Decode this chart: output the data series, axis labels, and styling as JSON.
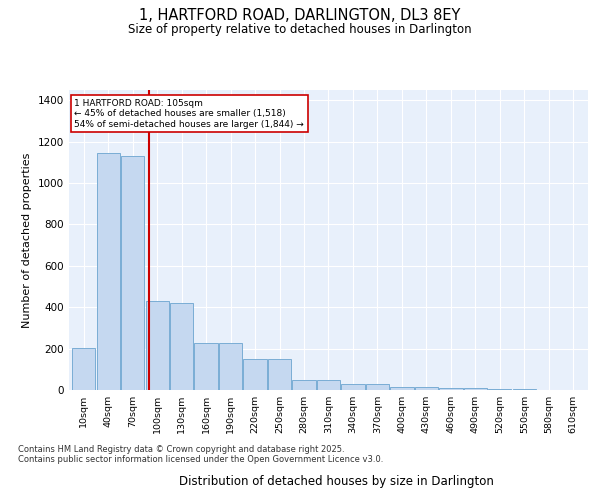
{
  "title_line1": "1, HARTFORD ROAD, DARLINGTON, DL3 8EY",
  "title_line2": "Size of property relative to detached houses in Darlington",
  "xlabel": "Distribution of detached houses by size in Darlington",
  "ylabel": "Number of detached properties",
  "bar_categories": [
    "10sqm",
    "40sqm",
    "70sqm",
    "100sqm",
    "130sqm",
    "160sqm",
    "190sqm",
    "220sqm",
    "250sqm",
    "280sqm",
    "310sqm",
    "340sqm",
    "370sqm",
    "400sqm",
    "430sqm",
    "460sqm",
    "490sqm",
    "520sqm",
    "550sqm",
    "580sqm",
    "610sqm"
  ],
  "bar_values": [
    205,
    1145,
    1130,
    430,
    420,
    225,
    225,
    150,
    150,
    50,
    50,
    30,
    30,
    15,
    15,
    10,
    10,
    5,
    5,
    2,
    2
  ],
  "bar_color": "#c5d8f0",
  "bar_edge_color": "#7aadd4",
  "fig_bg_color": "#ffffff",
  "axes_bg_color": "#e8f0fb",
  "grid_color": "#ffffff",
  "vline_x": 2.5,
  "vline_color": "#cc0000",
  "annotation_box_text": "1 HARTFORD ROAD: 105sqm\n← 45% of detached houses are smaller (1,518)\n54% of semi-detached houses are larger (1,844) →",
  "annotation_box_color": "#cc0000",
  "ylim": [
    0,
    1450
  ],
  "yticks": [
    0,
    200,
    400,
    600,
    800,
    1000,
    1200,
    1400
  ],
  "footnote": "Contains HM Land Registry data © Crown copyright and database right 2025.\nContains public sector information licensed under the Open Government Licence v3.0.",
  "n_bars": 21
}
